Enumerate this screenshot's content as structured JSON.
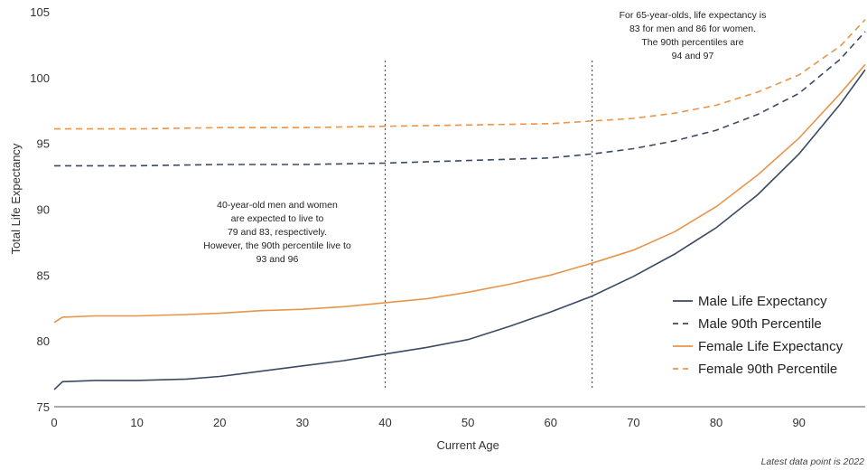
{
  "chart_data": {
    "type": "line",
    "xlabel": "Current Age",
    "ylabel": "Total Life Expectancy",
    "xlim": [
      0,
      98
    ],
    "ylim": [
      75,
      105
    ],
    "x_ticks": [
      0,
      10,
      20,
      30,
      40,
      50,
      60,
      70,
      80,
      90
    ],
    "y_ticks": [
      75,
      80,
      85,
      90,
      95,
      100,
      105
    ],
    "grid": false,
    "legend_position": "bottom-right",
    "vertical_markers": [
      40,
      65
    ],
    "series": [
      {
        "name": "Male Life Expectancy",
        "style": "solid",
        "color": "#3b4a63",
        "x": [
          0,
          1,
          5,
          10,
          16,
          20,
          25,
          30,
          35,
          40,
          45,
          50,
          55,
          60,
          65,
          70,
          75,
          80,
          85,
          90,
          95,
          98
        ],
        "y": [
          76.3,
          76.9,
          77.0,
          77.0,
          77.1,
          77.3,
          77.7,
          78.1,
          78.5,
          79.0,
          79.5,
          80.1,
          81.1,
          82.2,
          83.4,
          84.9,
          86.6,
          88.6,
          91.1,
          94.2,
          98.0,
          100.6
        ]
      },
      {
        "name": "Male 90th Percentile",
        "style": "dashed",
        "color": "#3b4a63",
        "x": [
          0,
          10,
          20,
          30,
          40,
          50,
          60,
          65,
          70,
          75,
          80,
          85,
          90,
          95,
          98
        ],
        "y": [
          93.3,
          93.3,
          93.4,
          93.4,
          93.5,
          93.7,
          93.9,
          94.2,
          94.6,
          95.2,
          96.0,
          97.2,
          98.8,
          101.4,
          103.5
        ]
      },
      {
        "name": "Female Life Expectancy",
        "style": "solid",
        "color": "#e8954a",
        "x": [
          0,
          1,
          5,
          10,
          16,
          20,
          25,
          30,
          35,
          40,
          45,
          50,
          55,
          60,
          65,
          70,
          75,
          80,
          85,
          90,
          95,
          98
        ],
        "y": [
          81.4,
          81.8,
          81.9,
          81.9,
          82.0,
          82.1,
          82.3,
          82.4,
          82.6,
          82.9,
          83.2,
          83.7,
          84.3,
          85.0,
          85.9,
          86.9,
          88.3,
          90.2,
          92.6,
          95.4,
          98.8,
          101.0
        ]
      },
      {
        "name": "Female 90th Percentile",
        "style": "dashed",
        "color": "#e8954a",
        "x": [
          0,
          10,
          20,
          30,
          40,
          50,
          60,
          65,
          70,
          75,
          80,
          85,
          90,
          95,
          98
        ],
        "y": [
          96.1,
          96.1,
          96.2,
          96.2,
          96.3,
          96.4,
          96.5,
          96.7,
          96.9,
          97.3,
          97.9,
          98.9,
          100.2,
          102.4,
          104.4
        ]
      }
    ],
    "annotations": [
      {
        "lines": [
          "40-year-old men and women",
          "are expected to live to",
          "79 and 83, respectively.",
          "However, the 90th percentile live to",
          "93 and 96"
        ]
      },
      {
        "lines": [
          "For 65-year-olds, life expectancy is",
          "83 for men and 86 for women.",
          "The 90th percentiles are",
          "94 and 97"
        ]
      }
    ],
    "footnote": "Latest data point is 2022"
  }
}
